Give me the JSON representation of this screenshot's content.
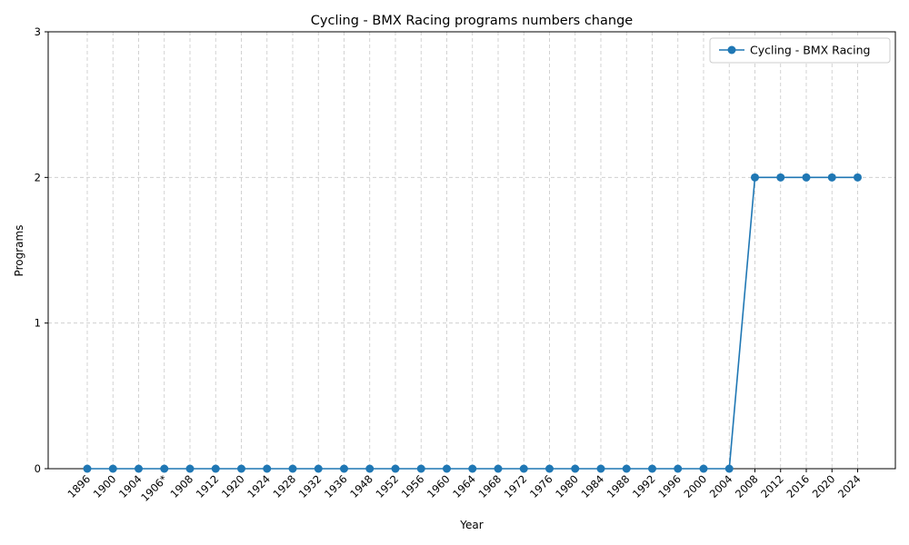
{
  "chart_data": {
    "type": "line",
    "title": "Cycling - BMX Racing programs numbers change",
    "xlabel": "Year",
    "ylabel": "Programs",
    "categories": [
      "1896",
      "1900",
      "1904",
      "1906*",
      "1908",
      "1912",
      "1920",
      "1924",
      "1928",
      "1932",
      "1936",
      "1948",
      "1952",
      "1956",
      "1960",
      "1964",
      "1968",
      "1972",
      "1976",
      "1980",
      "1984",
      "1988",
      "1992",
      "1996",
      "2000",
      "2004",
      "2008",
      "2012",
      "2016",
      "2020",
      "2024"
    ],
    "series": [
      {
        "name": "Cycling - BMX Racing",
        "values": [
          0,
          0,
          0,
          0,
          0,
          0,
          0,
          0,
          0,
          0,
          0,
          0,
          0,
          0,
          0,
          0,
          0,
          0,
          0,
          0,
          0,
          0,
          0,
          0,
          0,
          0,
          2,
          2,
          2,
          2,
          2
        ]
      }
    ],
    "ylim": [
      0,
      3
    ],
    "yticks": [
      0,
      1,
      2,
      3
    ],
    "grid": true,
    "legend_position": "top-right",
    "colors": {
      "series": "#1f77b4",
      "grid": "#c8c8c8",
      "axis": "#000000"
    }
  }
}
